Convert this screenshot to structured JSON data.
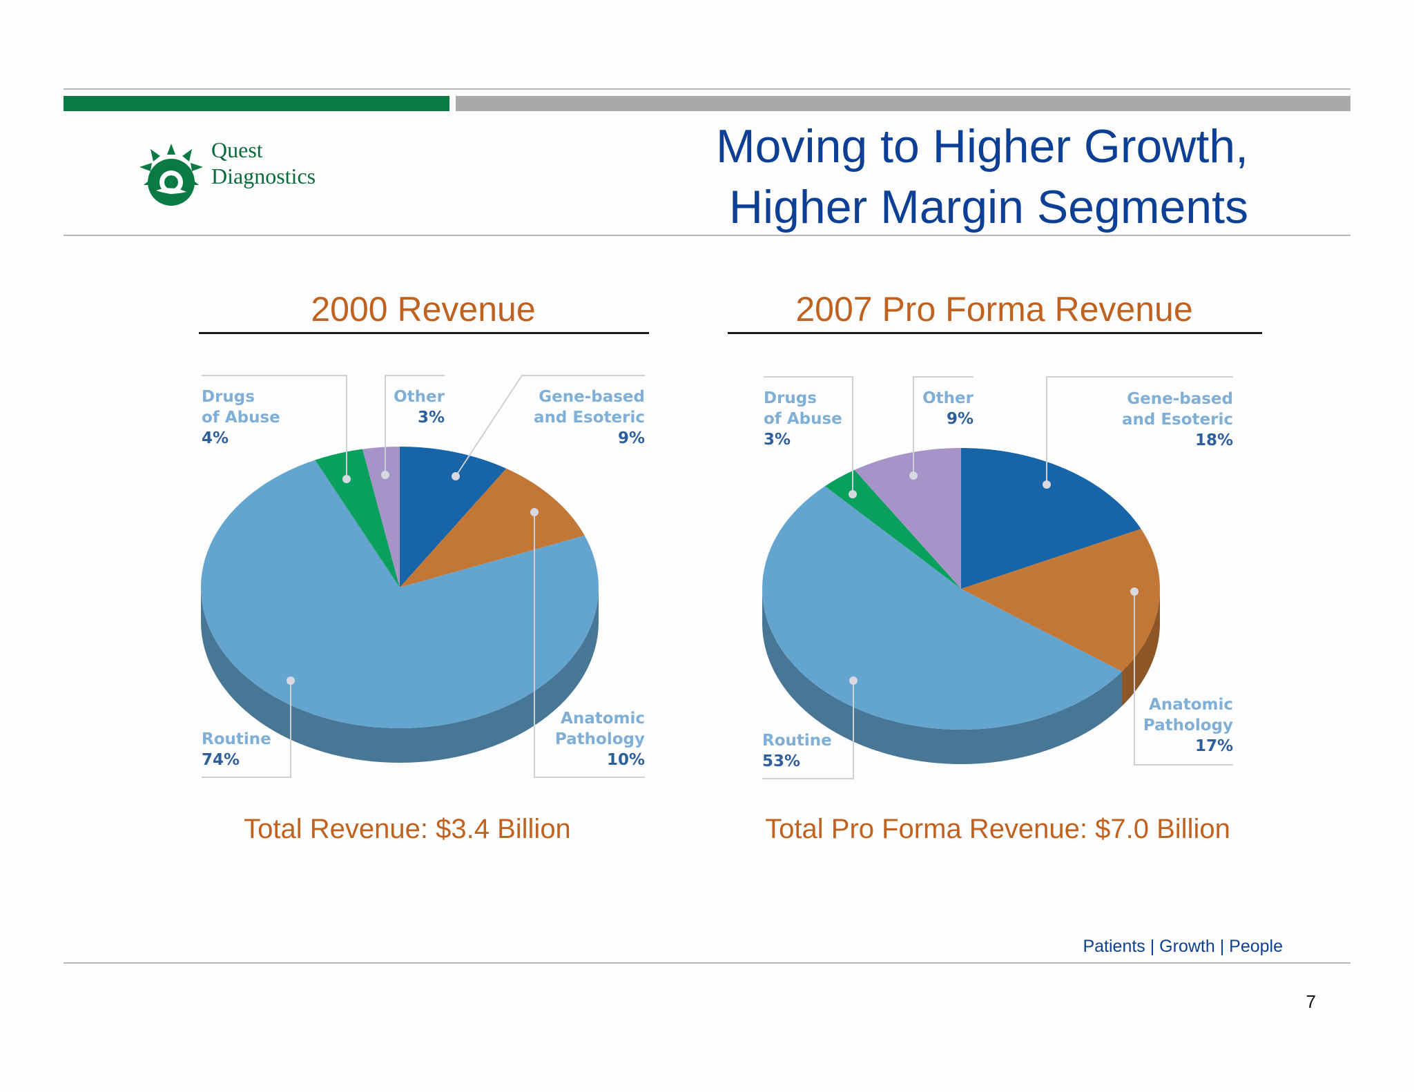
{
  "header": {
    "logo_line1": "Quest",
    "logo_line2": "Diagnostics",
    "title_line1": "Moving to Higher Growth,",
    "title_line2": "Higher Margin Segments"
  },
  "colors": {
    "title_blue": "#0d3f94",
    "accent_orange": "#c0621f",
    "brand_green": "#0a7a45",
    "gene_based": "#1764a8",
    "anatomic_pathology": "#c27736",
    "routine": "#64a5d0",
    "drugs_of_abuse": "#09a05e",
    "other": "#a693c8"
  },
  "chart_data": [
    {
      "type": "pie",
      "title": "2000 Revenue",
      "total_label": "Total Revenue: $3.4 Billion",
      "slices": [
        {
          "name_line1": "Gene-based",
          "name_line2": "and Esoteric",
          "value": 9,
          "label": "9%"
        },
        {
          "name_line1": "Anatomic",
          "name_line2": "Pathology",
          "value": 10,
          "label": "10%"
        },
        {
          "name_line1": "Routine",
          "name_line2": "",
          "value": 74,
          "label": "74%"
        },
        {
          "name_line1": "Drugs",
          "name_line2": "of Abuse",
          "value": 4,
          "label": "4%"
        },
        {
          "name_line1": "Other",
          "name_line2": "",
          "value": 3,
          "label": "3%"
        }
      ]
    },
    {
      "type": "pie",
      "title": "2007 Pro Forma Revenue",
      "total_label": "Total Pro Forma Revenue: $7.0 Billion",
      "slices": [
        {
          "name_line1": "Gene-based",
          "name_line2": "and Esoteric",
          "value": 18,
          "label": "18%"
        },
        {
          "name_line1": "Anatomic",
          "name_line2": "Pathology",
          "value": 17,
          "label": "17%"
        },
        {
          "name_line1": "Routine",
          "name_line2": "",
          "value": 53,
          "label": "53%"
        },
        {
          "name_line1": "Drugs",
          "name_line2": "of Abuse",
          "value": 3,
          "label": "3%"
        },
        {
          "name_line1": "Other",
          "name_line2": "",
          "value": 9,
          "label": "9%"
        }
      ]
    }
  ],
  "footer": {
    "tagline": "Patients | Growth | People",
    "page_number": "7"
  }
}
